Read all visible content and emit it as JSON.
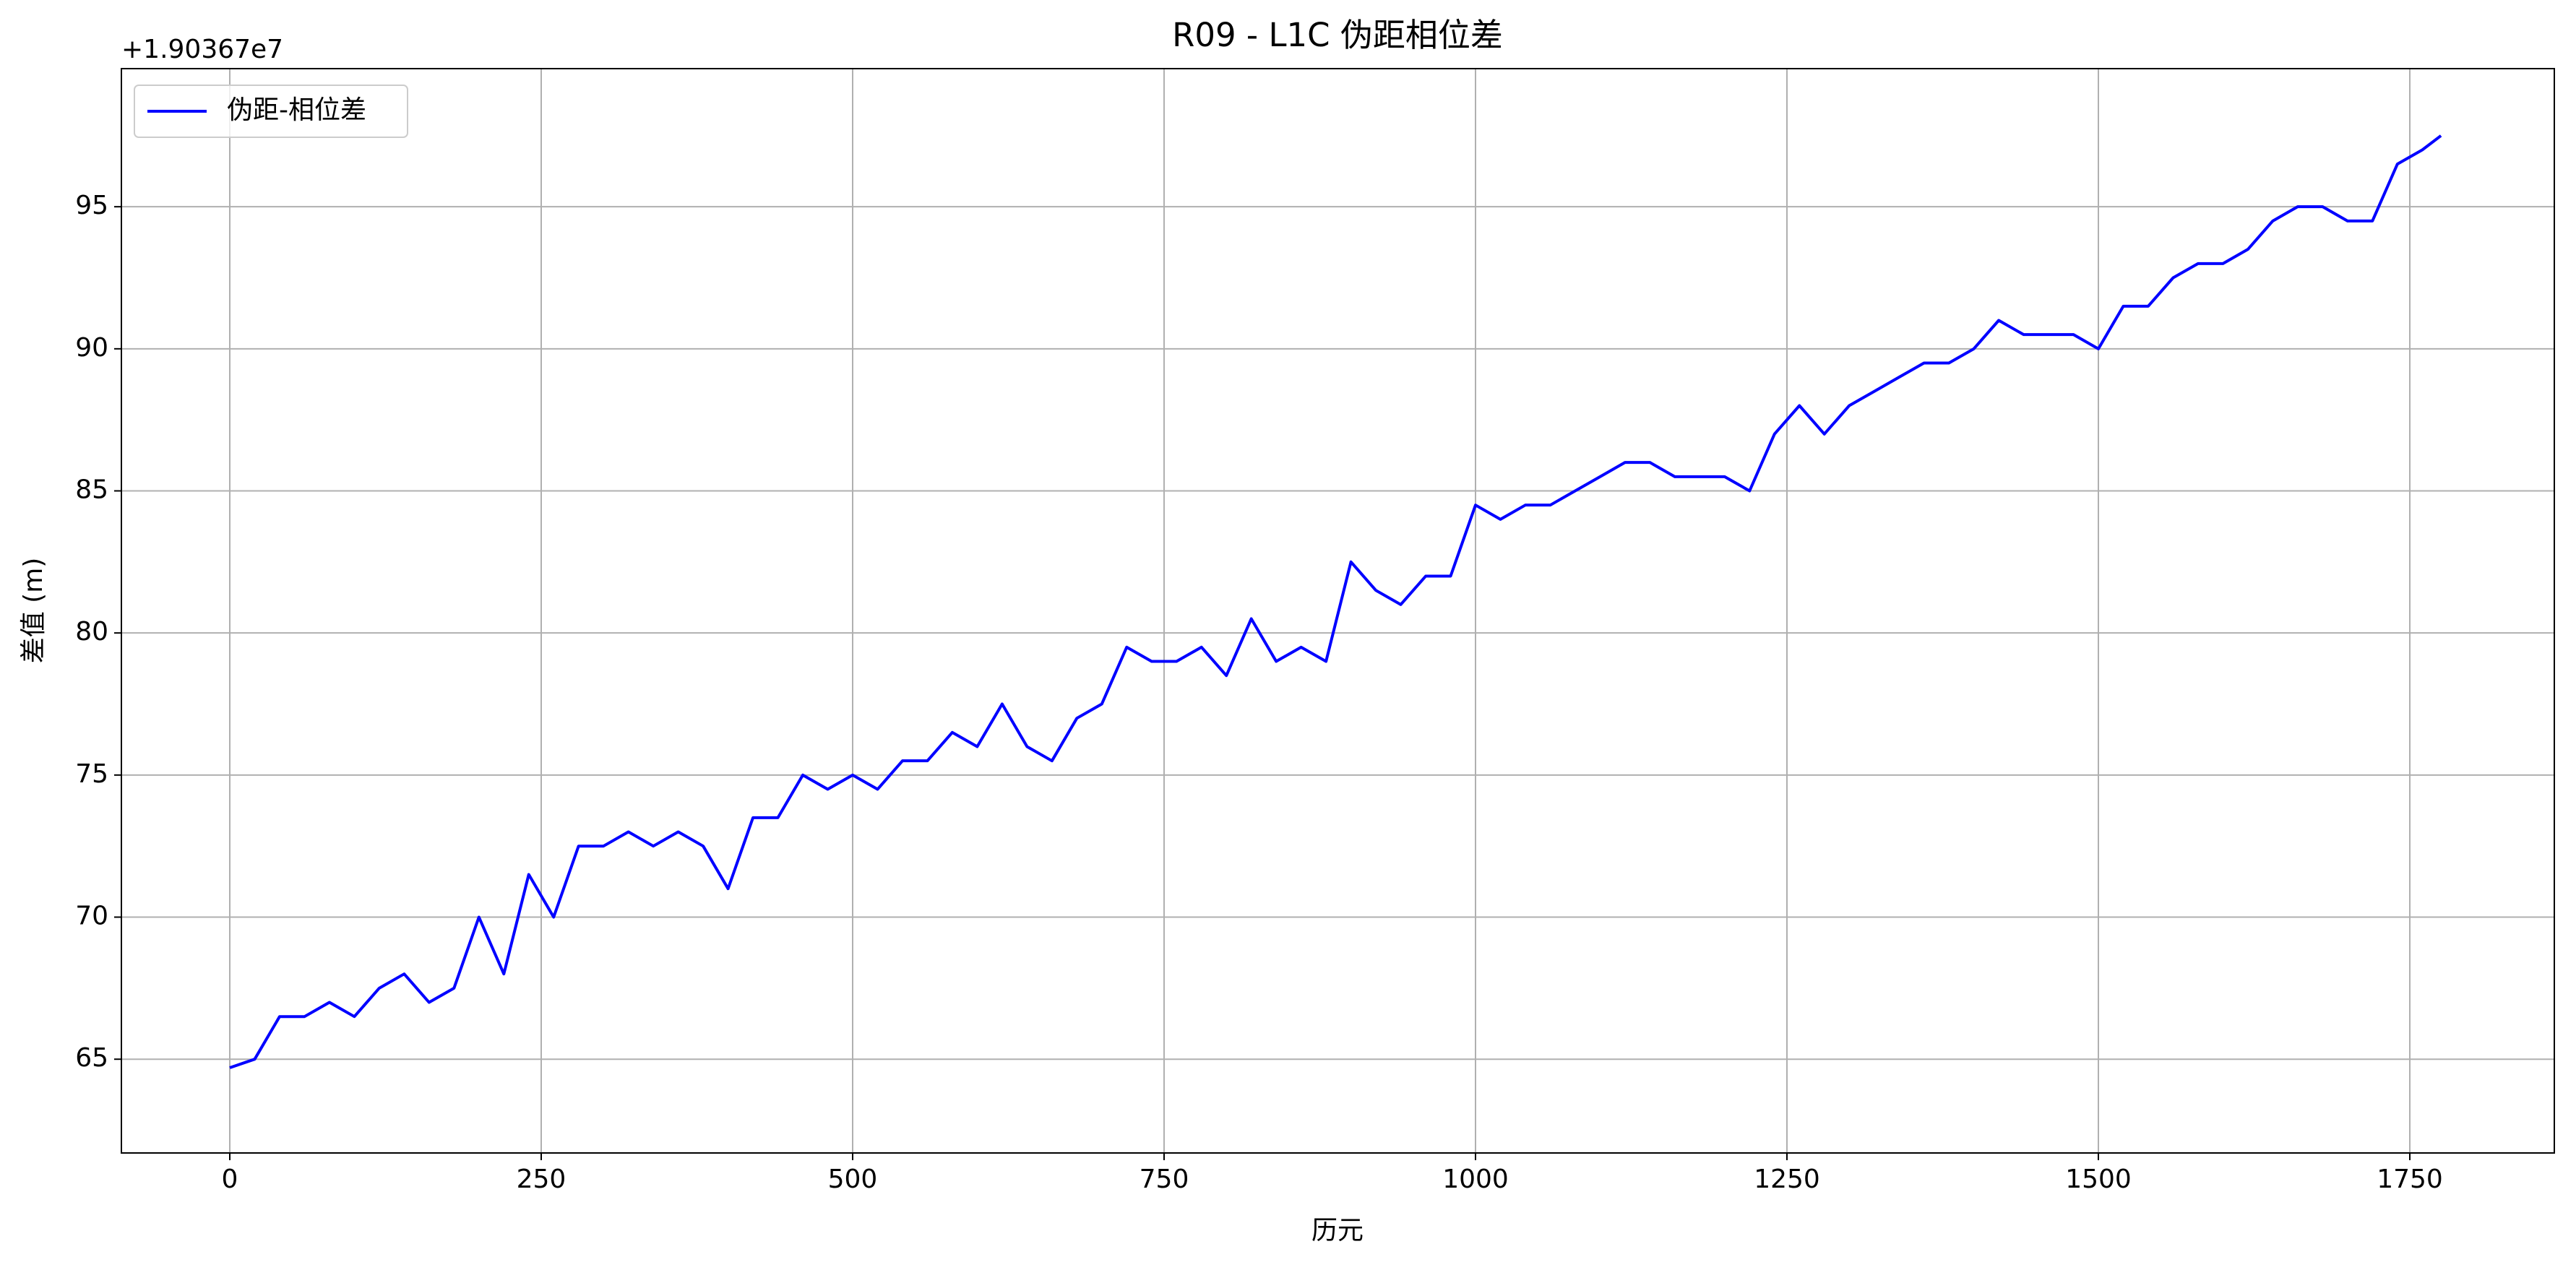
{
  "chart_data": {
    "type": "line",
    "title": "R09 - L1C 伪距相位差",
    "xlabel": "历元",
    "ylabel": "差值 (m)",
    "y_offset_label": "+1.90367e7",
    "x": [
      0,
      20,
      40,
      60,
      80,
      100,
      120,
      140,
      160,
      180,
      200,
      220,
      240,
      260,
      280,
      300,
      320,
      340,
      360,
      380,
      400,
      420,
      440,
      460,
      480,
      500,
      520,
      540,
      560,
      580,
      600,
      620,
      640,
      660,
      680,
      700,
      720,
      740,
      760,
      780,
      800,
      820,
      840,
      860,
      880,
      900,
      920,
      940,
      960,
      980,
      1000,
      1020,
      1040,
      1060,
      1080,
      1100,
      1120,
      1140,
      1160,
      1180,
      1200,
      1220,
      1240,
      1260,
      1280,
      1300,
      1320,
      1340,
      1360,
      1380,
      1400,
      1420,
      1440,
      1460,
      1480,
      1500,
      1520,
      1540,
      1560,
      1580,
      1600,
      1620,
      1640,
      1660,
      1680,
      1700,
      1720,
      1740,
      1760,
      1775
    ],
    "series": [
      {
        "name": "伪距-相位差",
        "color": "#0000ff",
        "values": [
          64.7,
          65,
          66.5,
          66.5,
          67,
          66.5,
          67.5,
          68,
          67,
          67.5,
          70,
          68,
          71.5,
          70,
          72.5,
          72.5,
          73,
          72.5,
          73,
          72.5,
          71,
          73.5,
          73.5,
          75,
          74.5,
          75,
          74.5,
          75.5,
          75.5,
          76.5,
          76,
          77.5,
          76,
          75.5,
          77,
          77.5,
          79.5,
          79,
          79,
          79.5,
          78.5,
          80.5,
          79,
          79.5,
          79,
          82.5,
          81.5,
          81,
          82,
          82,
          84.5,
          84,
          84.5,
          84.5,
          85,
          85.5,
          86,
          86,
          85.5,
          85.5,
          85.5,
          85,
          87,
          88,
          87,
          88,
          88.5,
          89,
          89.5,
          89.5,
          90,
          91,
          90.5,
          90.5,
          90.5,
          90,
          91.5,
          91.5,
          92.5,
          93,
          93,
          93.5,
          94.5,
          95,
          95,
          94.5,
          94.5,
          96.5,
          97,
          97.5
        ]
      }
    ],
    "xlim": [
      -87,
      1866
    ],
    "ylim": [
      61.7,
      99.86
    ],
    "xticks": [
      0,
      250,
      500,
      750,
      1000,
      1250,
      1500,
      1750
    ],
    "yticks": [
      65,
      70,
      75,
      80,
      85,
      90,
      95
    ],
    "grid": true,
    "legend": "upper left"
  }
}
